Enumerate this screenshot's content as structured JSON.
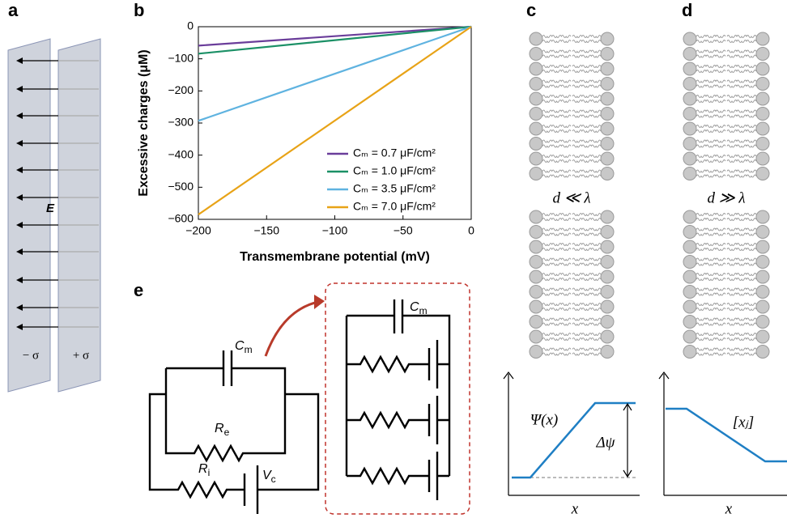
{
  "panel_labels": [
    "a",
    "b",
    "c",
    "d",
    "e"
  ],
  "chart_data": {
    "type": "line",
    "xlabel": "Transmembrane potential (mV)",
    "ylabel": "Excessive charges (μM)",
    "xlim": [
      -200,
      0
    ],
    "ylim": [
      -600,
      0
    ],
    "xticks": [
      {
        "value": -200,
        "label": "−200"
      },
      {
        "value": -150,
        "label": "−150"
      },
      {
        "value": -100,
        "label": "−100"
      },
      {
        "value": -50,
        "label": "−50"
      },
      0
    ],
    "yticks": [
      {
        "value": -600,
        "label": "−600"
      },
      {
        "value": -500,
        "label": "−500"
      },
      {
        "value": -400,
        "label": "−400"
      },
      {
        "value": -300,
        "label": "−300"
      },
      {
        "value": -200,
        "label": "−200"
      },
      {
        "value": -100,
        "label": "−100"
      },
      0
    ],
    "x": [
      -200,
      0
    ],
    "legend": "lower right",
    "series": [
      {
        "name": "Cₘ = 0.7 μF/cm²",
        "color": "#6a3d9a",
        "values": [
          -59,
          0
        ]
      },
      {
        "name": "Cₘ = 1.0 μF/cm²",
        "color": "#1b9066",
        "values": [
          -84,
          0
        ]
      },
      {
        "name": "Cₘ = 3.5 μF/cm²",
        "color": "#5fb3e0",
        "values": [
          -293,
          0
        ]
      },
      {
        "name": "Cₘ = 7.0 μF/cm²",
        "color": "#e8a317",
        "values": [
          -585,
          0
        ]
      }
    ]
  },
  "panel_a": {
    "field_label": "E",
    "left_plate": "− σ",
    "right_plate": "+ σ"
  },
  "panel_c": {
    "relation": "d ≪ λ",
    "potential_label": "Ψ(x)",
    "jump_label": "Δψ",
    "x_label": "x"
  },
  "panel_d": {
    "relation": "d ≫ λ",
    "concentration_label": "[xⱼ]",
    "x_label": "x"
  },
  "panel_e": {
    "capacitor": {
      "base": "C",
      "sub": "m"
    },
    "external_resistor": {
      "base": "R",
      "sub": "e"
    },
    "internal_resistor": {
      "base": "R",
      "sub": "i"
    },
    "voltage": {
      "base": "V",
      "sub": "c"
    },
    "detail_capacitor": {
      "base": "C",
      "sub": "m"
    }
  }
}
